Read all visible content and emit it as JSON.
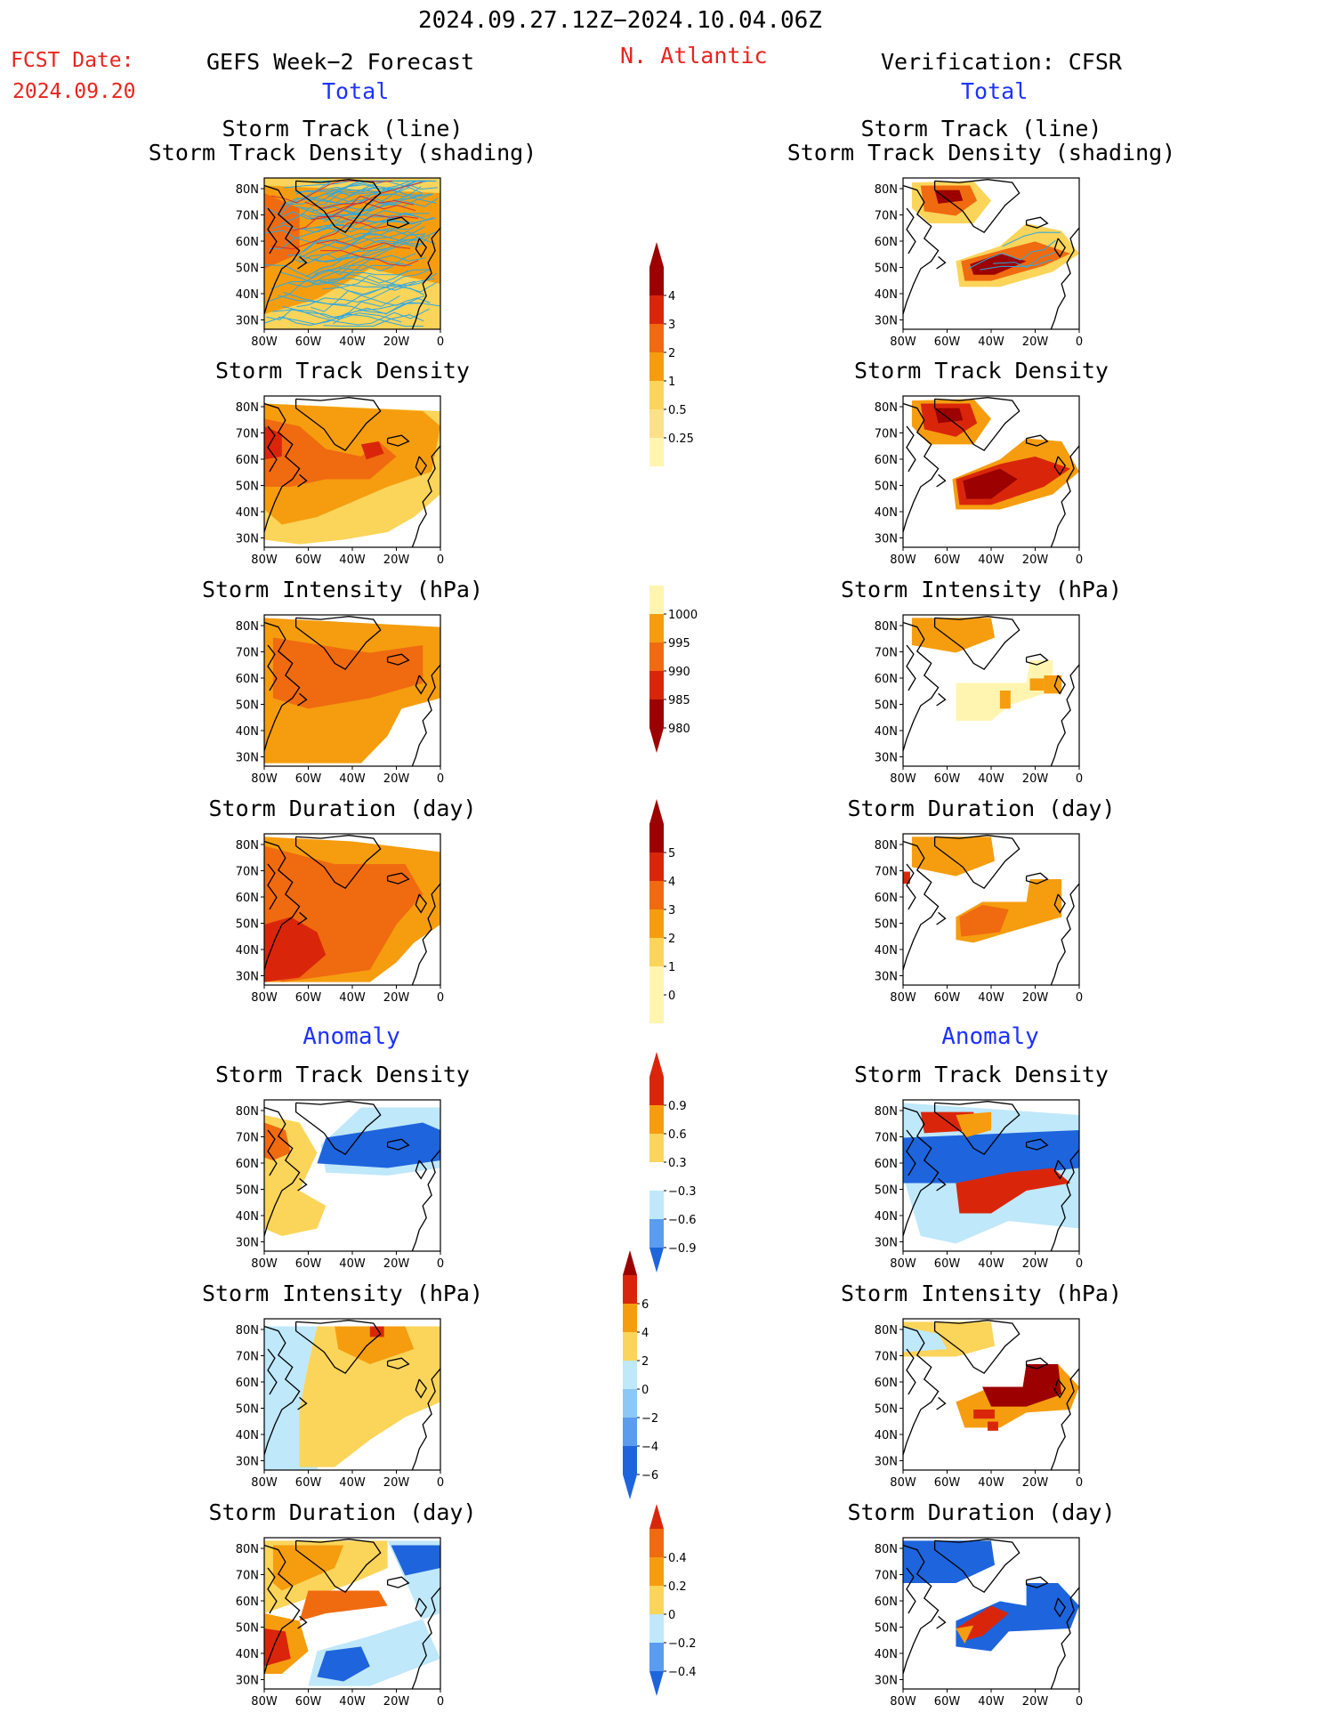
{
  "header": {
    "date_range": "2024.09.27.12Z−2024.10.04.06Z",
    "fcst_label": "FCST Date:",
    "fcst_date": "2024.09.20",
    "left_title": "GEFS Week−2 Forecast",
    "region": "N. Atlantic",
    "right_title": "Verification: CFSR",
    "total_left": "Total",
    "total_right": "Total"
  },
  "sections": {
    "anomaly_left": "Anomaly",
    "anomaly_right": "Anomaly"
  },
  "axes": {
    "lat_labels": [
      "80N",
      "70N",
      "60N",
      "50N",
      "40N",
      "30N"
    ],
    "lon_labels": [
      "80W",
      "60W",
      "40W",
      "20W",
      "0"
    ]
  },
  "panel_titles": {
    "track_line": "Storm Track (line)",
    "track_density_shading": "Storm Track Density (shading)",
    "density": "Storm Track Density",
    "intensity": "Storm Intensity (hPa)",
    "duration": "Storm Duration (day)"
  },
  "colorbars": {
    "density": [
      "0.25",
      "0.5",
      "1",
      "2",
      "3",
      "4"
    ],
    "intensity": [
      "1000",
      "995",
      "990",
      "985",
      "980"
    ],
    "duration": [
      "0",
      "1",
      "2",
      "3",
      "4",
      "5"
    ],
    "anom_density": [
      "0.9",
      "0.6",
      "0.3",
      "−0.3",
      "−0.6",
      "−0.9"
    ],
    "anom_intensity": [
      "6",
      "4",
      "2",
      "0",
      "−2",
      "−4",
      "−6"
    ],
    "anom_duration": [
      "0.4",
      "0.2",
      "0",
      "−0.2",
      "−0.4"
    ]
  },
  "colors": {
    "land_line": "#000000",
    "track_blue": "#2fa8e0",
    "track_red": "#d73030",
    "pale_yellow": "#fff5b0",
    "yellow": "#fbd45a",
    "orange": "#f59d0f",
    "dark_orange": "#f06a10",
    "red": "#d9260b",
    "dark_red": "#9c0000",
    "light_blue": "#bfe8fa",
    "blue": "#1e64dc",
    "mid_blue": "#5a9cf0"
  }
}
